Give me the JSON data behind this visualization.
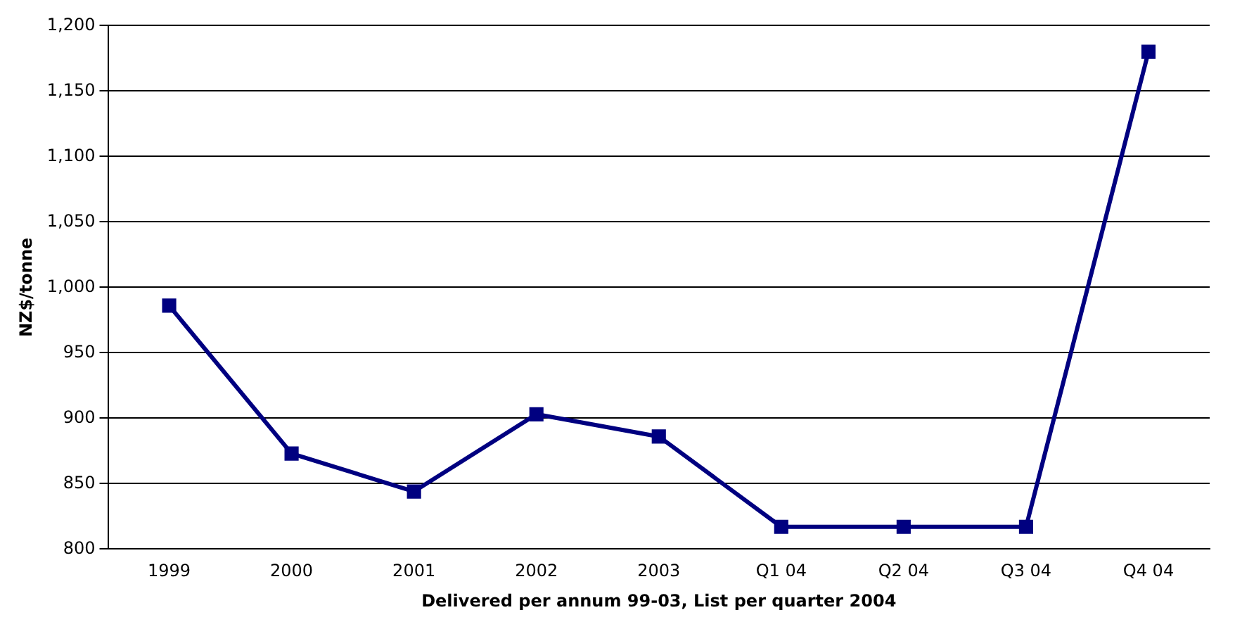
{
  "chart_data": {
    "type": "line",
    "xlabel": "Delivered per annum 99-03, List per quarter 2004",
    "ylabel": "NZ$/tonne",
    "categories": [
      "1999",
      "2000",
      "2001",
      "2002",
      "2003",
      "Q1 04",
      "Q2 04",
      "Q3 04",
      "Q4 04"
    ],
    "series": [
      {
        "color": "#000080",
        "values": [
          986,
          873,
          844,
          903,
          886,
          817,
          817,
          817,
          1180
        ]
      }
    ],
    "ylim": [
      800,
      1200
    ],
    "yticks": [
      {
        "value": 800,
        "label": "800"
      },
      {
        "value": 850,
        "label": "850"
      },
      {
        "value": 900,
        "label": "900"
      },
      {
        "value": 950,
        "label": "950"
      },
      {
        "value": 1000,
        "label": "1,000"
      },
      {
        "value": 1050,
        "label": "1,050"
      },
      {
        "value": 1100,
        "label": "1,100"
      },
      {
        "value": 1150,
        "label": "1,150"
      },
      {
        "value": 1200,
        "label": "1,200"
      }
    ],
    "grid": "y",
    "legend": false,
    "marker": "square",
    "line_style": "solid"
  }
}
